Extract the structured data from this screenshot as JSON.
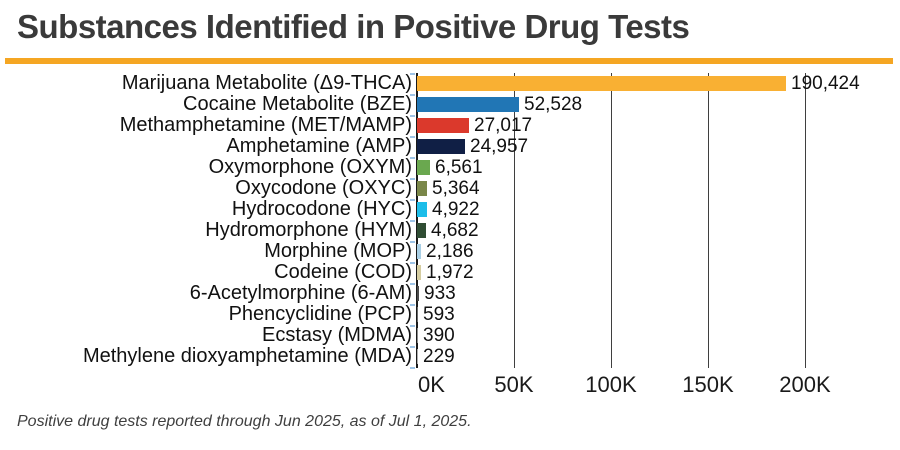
{
  "header": {
    "title": "Substances Identified in Positive Drug Tests",
    "accent_color": "#F5A623"
  },
  "chart_data": {
    "type": "bar",
    "orientation": "horizontal",
    "title": "Substances Identified in Positive Drug Tests",
    "xlabel": "",
    "ylabel": "",
    "xlim": [
      0,
      228000
    ],
    "grid": true,
    "legend": "none",
    "categories": [
      "Marijuana Metabolite (Δ9-THCA)",
      "Cocaine Metabolite (BZE)",
      "Methamphetamine (MET/MAMP)",
      "Amphetamine (AMP)",
      "Oxymorphone (OXYM)",
      "Oxycodone (OXYC)",
      "Hydrocodone (HYC)",
      "Hydromorphone (HYM)",
      "Morphine (MOP)",
      "Codeine (COD)",
      "6-Acetylmorphine (6-AM)",
      "Phencyclidine (PCP)",
      "Ecstasy (MDMA)",
      "Methylene dioxyamphetamine (MDA)"
    ],
    "values": [
      190424,
      52528,
      27017,
      24957,
      6561,
      5364,
      4922,
      4682,
      2186,
      1972,
      933,
      593,
      390,
      229
    ],
    "value_labels": [
      "190,424",
      "52,528",
      "27,017",
      "24,957",
      "6,561",
      "5,364",
      "4,922",
      "4,682",
      "2,186",
      "1,972",
      "933",
      "593",
      "390",
      "229"
    ],
    "bar_colors": [
      "#F9B033",
      "#2176B5",
      "#DB392C",
      "#101F45",
      "#6AA84F",
      "#7A8749",
      "#1CBDE9",
      "#2F4D33",
      "#A9CFE5",
      "#D5CDA1",
      "#4A4A4A",
      "#6B6B6B",
      "#8C8C8C",
      "#ADADAD"
    ],
    "x_ticks": [
      "0K",
      "50K",
      "100K",
      "150K",
      "200K"
    ],
    "x_tick_values": [
      0,
      50000,
      100000,
      150000,
      200000
    ],
    "axis_color": "#1a1a1a",
    "gridline_color": "#3f3f3f",
    "category_tick_color": "#9DC3E6"
  },
  "footer": {
    "note": "Positive drug tests reported through Jun 2025, as of Jul 1, 2025."
  }
}
